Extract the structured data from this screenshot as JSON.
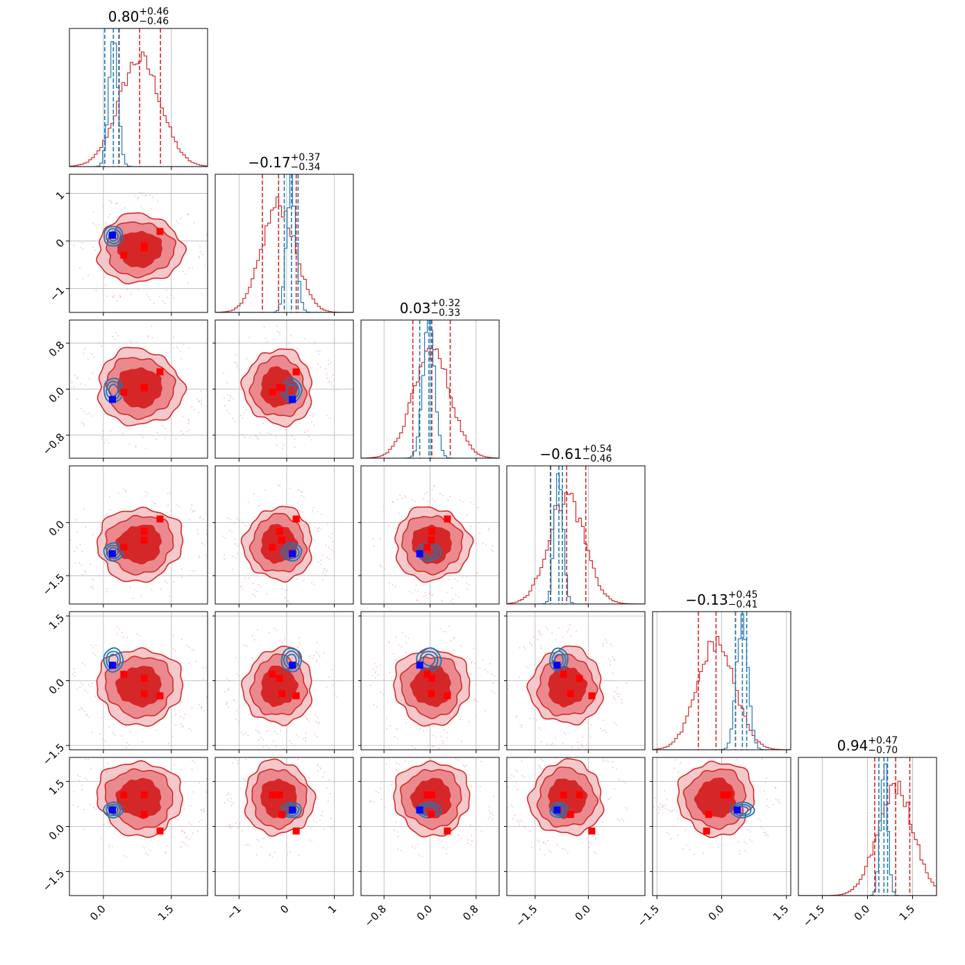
{
  "chart_data": {
    "type": "corner",
    "n_params": 6,
    "colors": {
      "posterior_a": "#d62728",
      "posterior_b": "#1f77b4",
      "injection": "#0000ff",
      "samples": "#ff0000"
    },
    "grid": true,
    "ranges": [
      [
        -0.75,
        2.3
      ],
      [
        -1.5,
        1.4
      ],
      [
        -1.2,
        1.2
      ],
      [
        -2.3,
        1.6
      ],
      [
        -1.6,
        1.6
      ],
      [
        -2.3,
        2.3
      ]
    ],
    "titles": [
      {
        "median": "0.80",
        "plus": "+0.46",
        "minus": "−0.46"
      },
      {
        "median": "−0.17",
        "plus": "+0.37",
        "minus": "−0.34"
      },
      {
        "median": "0.03",
        "plus": "+0.32",
        "minus": "−0.33"
      },
      {
        "median": "−0.61",
        "plus": "+0.54",
        "minus": "−0.46"
      },
      {
        "median": "−0.13",
        "plus": "+0.45",
        "minus": "−0.41"
      },
      {
        "median": "0.94",
        "plus": "+0.47",
        "minus": "−0.70"
      }
    ],
    "ticks": [
      {
        "values": [
          0.0,
          1.5
        ],
        "labels": [
          "0.0",
          "1.5"
        ]
      },
      {
        "values": [
          -1,
          0,
          1
        ],
        "labels": [
          "−1",
          "0",
          "1"
        ]
      },
      {
        "values": [
          -0.8,
          0.0,
          0.8
        ],
        "labels": [
          "−0.8",
          "0.0",
          "0.8"
        ]
      },
      {
        "values": [
          -1.5,
          0.0
        ],
        "labels": [
          "−1.5",
          "0.0"
        ]
      },
      {
        "values": [
          -1.5,
          0.0,
          1.5
        ],
        "labels": [
          "−1.5",
          "0.0",
          "1.5"
        ]
      },
      {
        "values": [
          -1.5,
          0.0,
          1.5
        ],
        "labels": [
          "−1.5",
          "0.0",
          "1.5"
        ]
      }
    ],
    "ytick_overrides": {
      "2": {
        "values": [
          -0.8,
          0.0,
          0.8
        ],
        "labels": [
          "−0.8",
          "0.0",
          "0.8"
        ]
      },
      "3": {
        "values": [
          -1.5,
          0.0
        ],
        "labels": [
          "−1.5",
          "0.0"
        ]
      }
    },
    "posterior_a": {
      "mean": [
        0.8,
        -0.17,
        0.03,
        -0.61,
        -0.13,
        0.94
      ],
      "sd": [
        0.46,
        0.35,
        0.32,
        0.5,
        0.43,
        0.6
      ],
      "quantile_lines": [
        [
          0.34,
          1.26
        ],
        [
          -0.51,
          0.2
        ],
        [
          -0.3,
          0.35
        ],
        [
          -1.07,
          -0.07
        ],
        [
          -0.54,
          0.32
        ],
        [
          0.24,
          1.41
        ]
      ]
    },
    "posterior_b": {
      "mean": [
        0.22,
        0.1,
        -0.02,
        -0.83,
        0.48,
        0.55
      ],
      "sd": [
        0.1,
        0.1,
        0.1,
        0.12,
        0.13,
        0.12
      ],
      "quantile_lines": [
        [
          0.03,
          0.35
        ],
        [
          -0.05,
          0.24
        ],
        [
          -0.18,
          0.02
        ],
        [
          -1.06,
          -0.73
        ],
        [
          0.32,
          0.58
        ],
        [
          0.38,
          0.67
        ]
      ]
    },
    "injection": [
      0.2,
      0.12,
      -0.18,
      -0.88,
      0.36,
      0.55
    ],
    "sample_points": [
      [
        0.45,
        -0.3,
        -0.05,
        -0.7,
        0.15,
        1.05
      ],
      [
        0.9,
        -0.15,
        0.03,
        -0.25,
        0.05,
        1.05
      ],
      [
        1.25,
        0.2,
        0.3,
        0.1,
        -0.35,
        -0.15
      ],
      [
        0.9,
        -0.1,
        0.02,
        -0.5,
        -0.3,
        0.4
      ]
    ]
  }
}
